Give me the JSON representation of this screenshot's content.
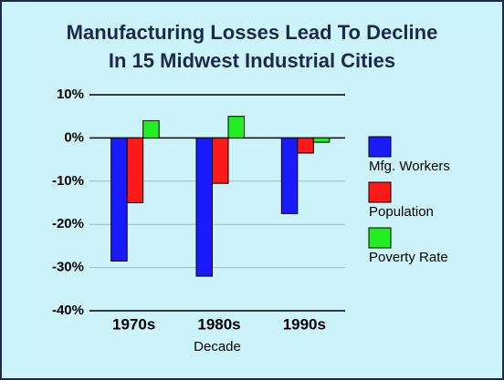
{
  "chart_data": {
    "type": "bar",
    "title": [
      "Manufacturing Losses Lead To Decline",
      "In 15 Midwest Industrial Cities"
    ],
    "x_label": "Decade",
    "categories": [
      "1970s",
      "1980s",
      "1990s"
    ],
    "series": [
      {
        "name": "Mfg. Workers",
        "color": "#1a1aff",
        "values": [
          -28.5,
          -32,
          -17.5
        ]
      },
      {
        "name": "Population",
        "color": "#ff1a1a",
        "values": [
          -15,
          -10.5,
          -3.5
        ]
      },
      {
        "name": "Poverty Rate",
        "color": "#22ee22",
        "values": [
          4,
          5,
          -1
        ]
      }
    ],
    "ylim": [
      -40,
      10
    ],
    "yticks": [
      {
        "value": 10,
        "label": "10%"
      },
      {
        "value": 0,
        "label": "0%"
      },
      {
        "value": -10,
        "label": "-10%"
      },
      {
        "value": -20,
        "label": "-20%"
      },
      {
        "value": -30,
        "label": "-30%"
      },
      {
        "value": -40,
        "label": "-40%"
      }
    ],
    "grid": true
  }
}
